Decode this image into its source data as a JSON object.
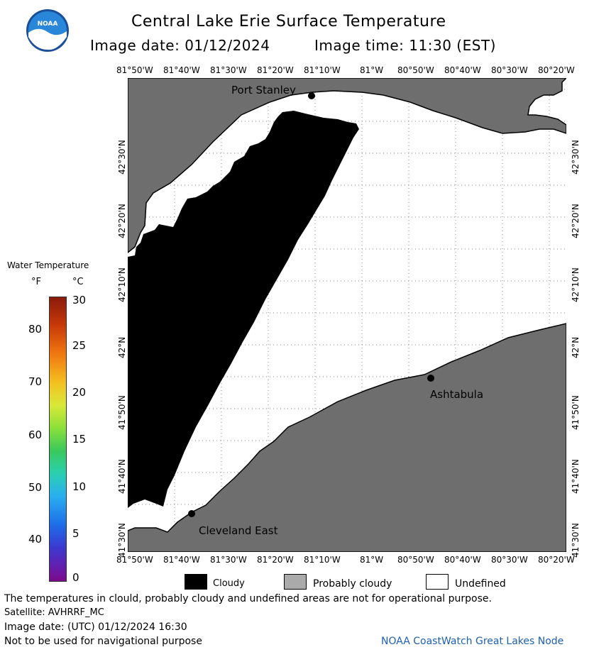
{
  "header": {
    "title": "Central Lake Erie Surface Temperature",
    "image_date_label": "Image date: 01/12/2024",
    "image_time_label": "Image time: 11:30 (EST)"
  },
  "logo": {
    "text": "NOAA"
  },
  "map": {
    "lon_labels": [
      "81°50'W",
      "81°40'W",
      "81°30'W",
      "81°20'W",
      "81°10'W",
      "81°W",
      "80°50'W",
      "80°40'W",
      "80°30'W",
      "80°20'W"
    ],
    "lat_labels": [
      "42°30'N",
      "42°20'N",
      "42°10'N",
      "42°N",
      "41°50'N",
      "41°40'N",
      "41°30'N"
    ],
    "places": {
      "port_stanley": "Port Stanley",
      "ashtabula": "Ashtabula",
      "cleveland_east": "Cleveland East"
    },
    "colors": {
      "land": "#6e6e6e",
      "cloudy": "#000000",
      "undefined": "#ffffff"
    }
  },
  "legend": {
    "title": "Water Temperature",
    "unit_f": "°F",
    "unit_c": "°C",
    "f_ticks": [
      "80",
      "70",
      "60",
      "50",
      "40"
    ],
    "c_ticks": [
      "30",
      "25",
      "20",
      "15",
      "10",
      "5",
      "0"
    ]
  },
  "key": {
    "cloudy": "Cloudy",
    "probably_cloudy": "Probably cloudy",
    "undefined": "Undefined"
  },
  "footer": {
    "disclaimer": "The temperatures in clould, probably cloudy and undefined areas are not for operational purpose.",
    "satellite": "Satellite: AVHRRF_MC",
    "utc_date": "Image date: (UTC) 01/12/2024  16:30",
    "navigation": "Not to be used for navigational purpose",
    "credit": "NOAA CoastWatch Great Lakes Node"
  }
}
